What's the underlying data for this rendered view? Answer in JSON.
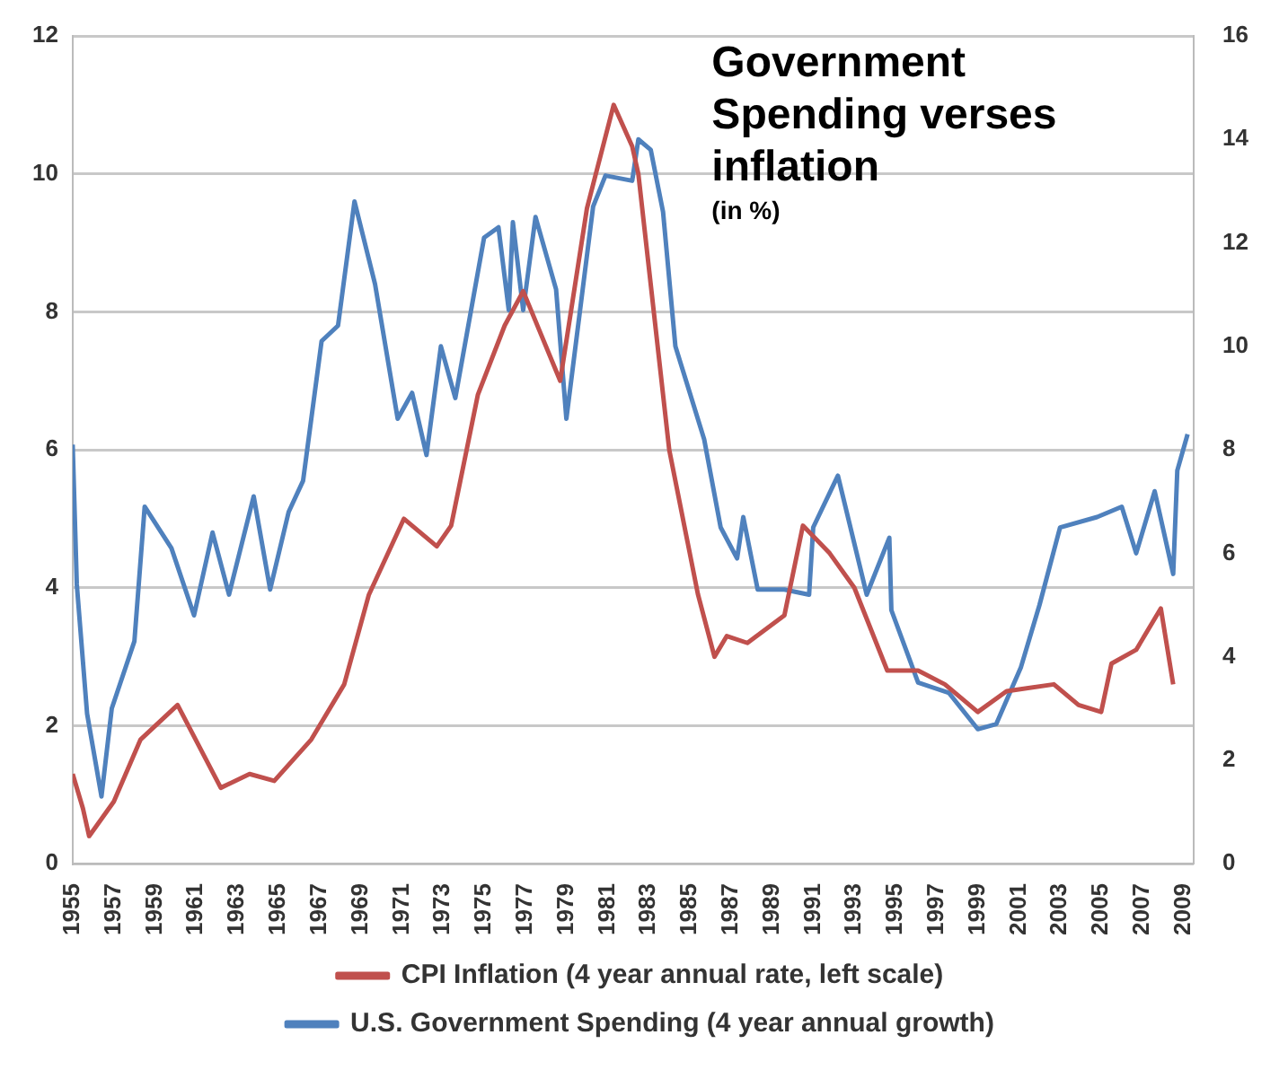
{
  "chart_data": {
    "type": "line",
    "title": "Government Spending verses inflation",
    "subtitle": "(in %)",
    "xlim": [
      1955,
      2009.5
    ],
    "xticks": [
      1955,
      1957,
      1959,
      1961,
      1963,
      1965,
      1967,
      1969,
      1971,
      1973,
      1975,
      1977,
      1979,
      1981,
      1983,
      1985,
      1987,
      1989,
      1991,
      1993,
      1995,
      1997,
      1999,
      2001,
      2003,
      2005,
      2007,
      2009
    ],
    "ylim": [
      0,
      12
    ],
    "yticks": [
      0,
      2,
      4,
      6,
      8,
      10,
      12
    ],
    "y2lim": [
      0,
      16
    ],
    "y2ticks": [
      0,
      2,
      4,
      6,
      8,
      10,
      12,
      14,
      16
    ],
    "grid": "y",
    "legend": "bottom",
    "marker": "none",
    "series": [
      {
        "name": "CPI Inflation (4 year annual rate, left scale)",
        "color": "#c0504d",
        "x": [
          1955,
          1955.5,
          1955.8,
          1957,
          1958.3,
          1960.1,
          1962.2,
          1963.6,
          1964.8,
          1966.6,
          1968.2,
          1969.4,
          1971.1,
          1972.7,
          1973.4,
          1974.7,
          1976,
          1976.9,
          1978.7,
          1980,
          1981.3,
          1982.2,
          1982.5,
          1984,
          1985.4,
          1986.2,
          1986.8,
          1987.8,
          1989.6,
          1990.5,
          1991.8,
          1993,
          1994.6,
          1996.1,
          1997.4,
          1999,
          2000.4,
          2002.7,
          2003.9,
          2005,
          2005.5,
          2006.7,
          2007.9,
          2008.5
        ],
        "values": [
          1.3,
          0.8,
          0.4,
          0.9,
          1.8,
          2.3,
          1.1,
          1.3,
          1.2,
          1.8,
          2.6,
          3.9,
          5.0,
          4.6,
          4.9,
          6.8,
          7.8,
          8.3,
          7.0,
          9.5,
          11.0,
          10.4,
          10.0,
          6.0,
          3.9,
          3.0,
          3.3,
          3.2,
          3.6,
          4.9,
          4.5,
          4.0,
          2.8,
          2.8,
          2.6,
          2.2,
          2.5,
          2.6,
          2.3,
          2.2,
          2.9,
          3.1,
          3.7,
          2.6
        ]
      },
      {
        "name": "U.S. Government Spending (4 year annual growth)",
        "color": "#4f81bd",
        "axis": "y2",
        "x": [
          1955,
          1955.2,
          1955.7,
          1956.4,
          1956.9,
          1958,
          1958.5,
          1959.8,
          1960.9,
          1961.8,
          1962.6,
          1963.8,
          1964.6,
          1965.5,
          1966.2,
          1967.1,
          1967.9,
          1968.7,
          1969.7,
          1970.8,
          1971.5,
          1972.2,
          1972.9,
          1973.6,
          1975,
          1975.7,
          1976.2,
          1976.4,
          1976.9,
          1977.5,
          1978.5,
          1979,
          1980.3,
          1980.9,
          1982.2,
          1982.5,
          1983.1,
          1983.7,
          1984.3,
          1985.7,
          1986.5,
          1987.3,
          1987.6,
          1988.3,
          1989.6,
          1990.8,
          1991,
          1992.2,
          1993.6,
          1994.7,
          1994.8,
          1996.1,
          1997.6,
          1999,
          1999.9,
          2001.1,
          2002,
          2003,
          2004.8,
          2006,
          2006.7,
          2007.6,
          2008.5,
          2008.7,
          2009.2
        ],
        "values": [
          8.1,
          5.4,
          2.9,
          1.3,
          3.0,
          4.3,
          6.9,
          6.1,
          4.8,
          6.4,
          5.2,
          7.1,
          5.3,
          6.8,
          7.4,
          10.1,
          10.4,
          12.8,
          11.2,
          8.6,
          9.1,
          7.9,
          10.0,
          9.0,
          12.1,
          12.3,
          10.7,
          12.4,
          10.7,
          12.5,
          11.1,
          8.6,
          12.7,
          13.3,
          13.2,
          14.0,
          13.8,
          12.6,
          10.0,
          8.2,
          6.5,
          5.9,
          6.7,
          5.3,
          5.3,
          5.2,
          6.5,
          7.5,
          5.2,
          6.3,
          4.9,
          3.5,
          3.3,
          2.6,
          2.7,
          3.8,
          5.0,
          6.5,
          6.7,
          6.9,
          6.0,
          7.2,
          5.6,
          7.6,
          8.3
        ]
      }
    ]
  }
}
